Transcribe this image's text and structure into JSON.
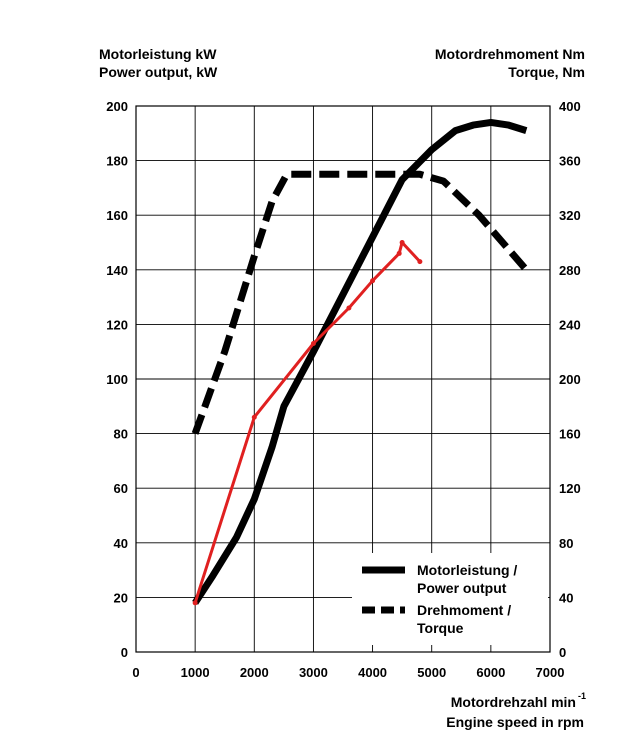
{
  "chart_data": {
    "type": "line",
    "left_axis_title": [
      "Motorleistung kW",
      "Power output, kW"
    ],
    "right_axis_title": [
      "Motordrehmoment Nm",
      "Torque, Nm"
    ],
    "x_axis_title": [
      "Motordrehzahl min",
      "Engine speed in rpm"
    ],
    "x_axis_title_superscript": "-1",
    "xlim": [
      0,
      7000
    ],
    "ylim_left": [
      0,
      200
    ],
    "ylim_right": [
      0,
      400
    ],
    "x_ticks": [
      "0",
      "1000",
      "2000",
      "3000",
      "4000",
      "5000",
      "6000",
      "7000"
    ],
    "y_ticks_left": [
      "0",
      "20",
      "40",
      "60",
      "80",
      "100",
      "120",
      "140",
      "160",
      "180",
      "200"
    ],
    "y_ticks_right": [
      "0",
      "40",
      "80",
      "120",
      "160",
      "200",
      "240",
      "280",
      "320",
      "360",
      "400"
    ],
    "grid": true,
    "legend_position": "bottom-right",
    "series": [
      {
        "name": "Motorleistung / Power output",
        "legend_lines": [
          "Motorleistung /",
          "Power output"
        ],
        "axis": "left",
        "style": "solid",
        "color": "#000000",
        "x": [
          1000,
          1300,
          1700,
          2000,
          2300,
          2500,
          3000,
          3500,
          4000,
          4500,
          5000,
          5400,
          5700,
          6000,
          6300,
          6600
        ],
        "y": [
          18,
          28,
          42,
          56,
          75,
          90,
          110,
          131,
          152,
          173,
          184,
          191,
          193,
          194,
          193,
          191
        ]
      },
      {
        "name": "Drehmoment / Torque",
        "legend_lines": [
          "Drehmoment /",
          "Torque"
        ],
        "axis": "right",
        "style": "dashed",
        "color": "#000000",
        "x": [
          1000,
          1500,
          2000,
          2300,
          2550,
          3000,
          4000,
          4800,
          5200,
          5800,
          6600
        ],
        "y": [
          160,
          220,
          290,
          330,
          350,
          350,
          350,
          350,
          345,
          320,
          280
        ]
      },
      {
        "name": "",
        "axis": "left",
        "style": "solid",
        "color": "#e02020",
        "x": [
          1000,
          2000,
          3000,
          3600,
          4000,
          4450,
          4500,
          4800
        ],
        "y": [
          18,
          86,
          113,
          126,
          136,
          146,
          150,
          143
        ]
      }
    ]
  }
}
